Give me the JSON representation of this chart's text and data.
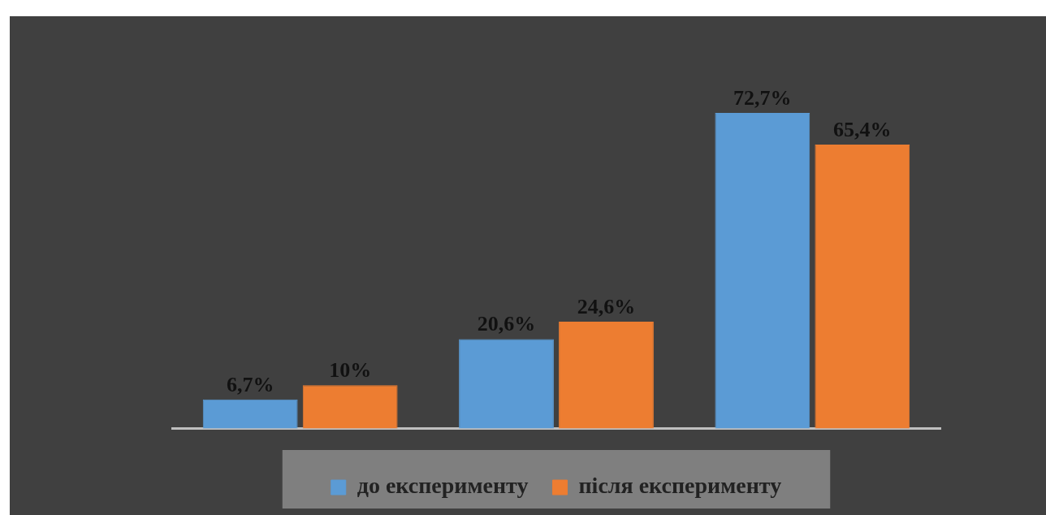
{
  "chart_data": {
    "type": "bar",
    "categories": [
      null,
      null,
      null
    ],
    "series": [
      {
        "name": "до експерименту",
        "color": "#5b9bd5",
        "values": [
          6.7,
          20.6,
          72.7
        ],
        "value_labels": [
          "6,7%",
          "20,6%",
          "72,7%"
        ]
      },
      {
        "name": "після експерименту",
        "color": "#ed7d31",
        "values": [
          10,
          24.6,
          65.4
        ],
        "value_labels": [
          "10%",
          "24,6%",
          "65,4%"
        ]
      }
    ],
    "legend": "bottom"
  }
}
